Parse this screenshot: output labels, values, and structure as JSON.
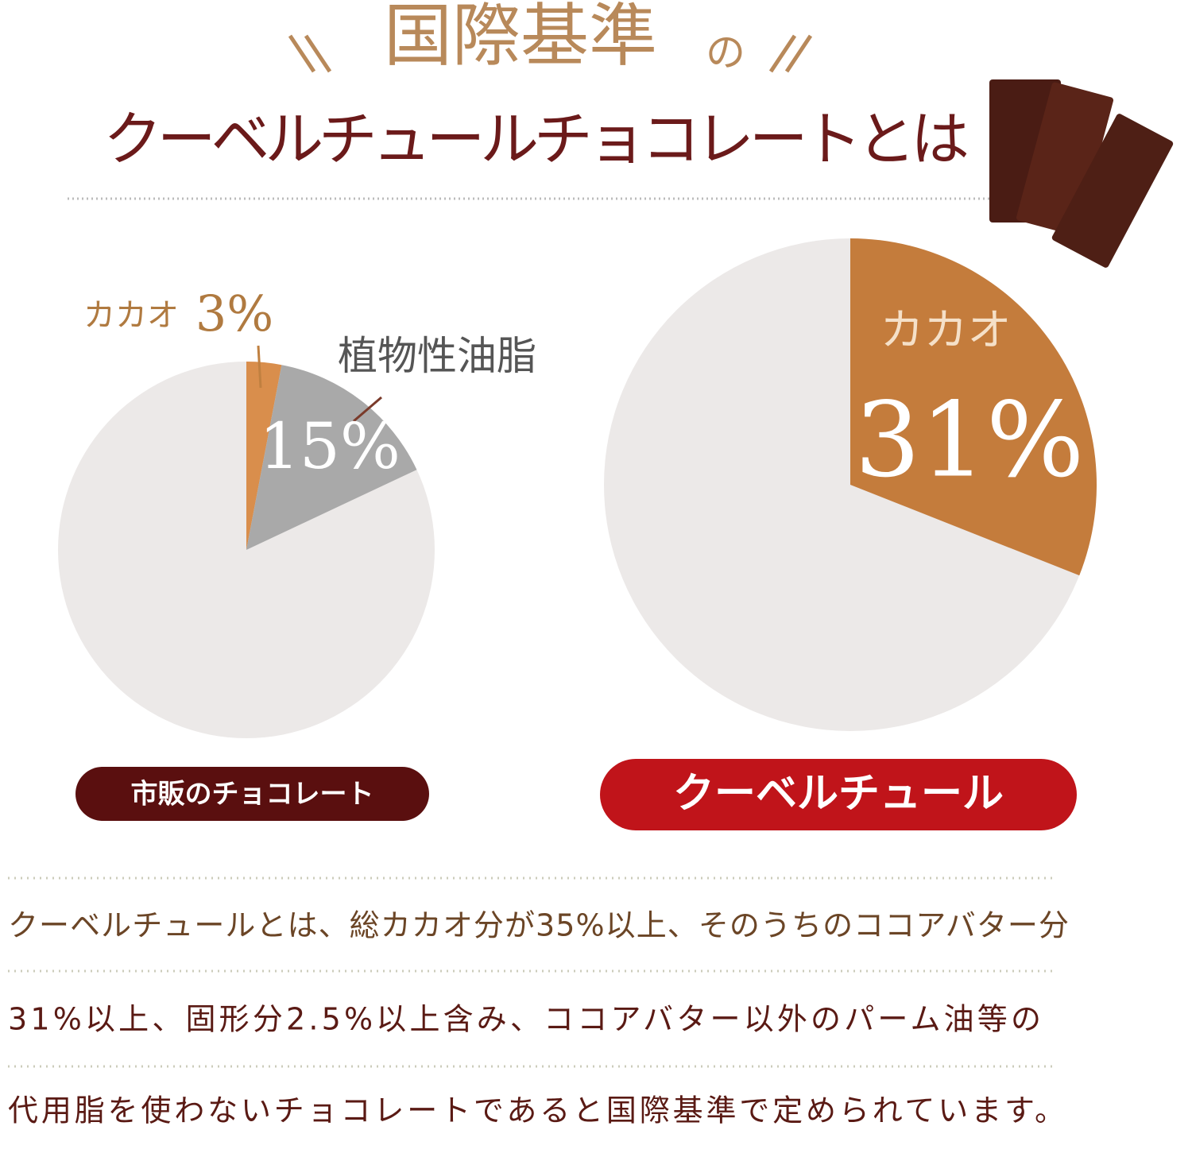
{
  "header": {
    "title": "国際基準",
    "particle": "の",
    "subtitle": "クーベルチュールチョコレートとは"
  },
  "chart_data": [
    {
      "type": "pie",
      "title": "市販のチョコレート",
      "categories": [
        "カカオ",
        "植物性油脂"
      ],
      "values": [
        3,
        15
      ],
      "value_labels": [
        "3%",
        "15%"
      ],
      "colors": [
        "#d98e4c",
        "#a9a9a9"
      ]
    },
    {
      "type": "pie",
      "title": "クーベルチュール",
      "categories": [
        "カカオ"
      ],
      "values": [
        31
      ],
      "value_labels": [
        "31%"
      ],
      "colors": [
        "#c47c3c"
      ]
    }
  ],
  "body": {
    "lines": [
      "クーベルチュールとは、総カカオ分が35%以上、そのうちのココアバター分",
      "31%以上、固形分2.5%以上含み、ココアバター以外のパーム油等の",
      "代用脂を使わないチョコレートであると国際基準で定められています。"
    ]
  }
}
